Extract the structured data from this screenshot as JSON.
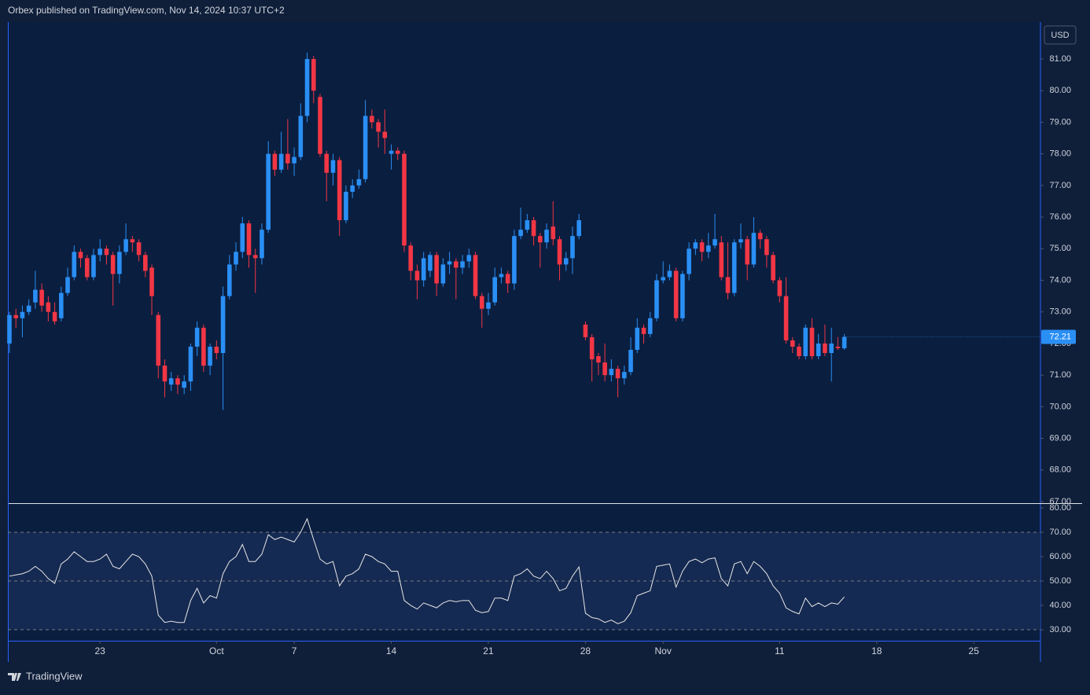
{
  "header": "Orbex published on TradingView.com, Nov 14, 2024 10:37 UTC+2",
  "currency": "USD",
  "brand": "TradingView",
  "chart_data": [
    {
      "type": "candlestick",
      "up_color": "#2a8ff5",
      "down_color": "#f23645",
      "xlim": [
        -0.24,
        159.3
      ],
      "ylim": [
        66.95,
        82.17
      ],
      "yticks": [
        {
          "value": 81,
          "label": "81.00"
        },
        {
          "value": 80,
          "label": "80.00"
        },
        {
          "value": 79,
          "label": "79.00"
        },
        {
          "value": 78,
          "label": "78.00"
        },
        {
          "value": 77,
          "label": "77.00"
        },
        {
          "value": 76,
          "label": "76.00"
        },
        {
          "value": 75,
          "label": "75.00"
        },
        {
          "value": 74,
          "label": "74.00"
        },
        {
          "value": 73,
          "label": "73.00"
        },
        {
          "value": 72,
          "label": "72.00"
        },
        {
          "value": 71,
          "label": "71.00"
        },
        {
          "value": 70,
          "label": "70.00"
        },
        {
          "value": 69,
          "label": "69.00"
        },
        {
          "value": 68,
          "label": "68.00"
        },
        {
          "value": 67,
          "label": "67.00"
        }
      ],
      "open": [
        72.0,
        72.9,
        72.8,
        73.0,
        73.3,
        73.7,
        73.3,
        73.0,
        72.8,
        73.6,
        74.1,
        74.9,
        74.7,
        74.1,
        74.8,
        75.0,
        74.8,
        74.2,
        74.9,
        75.3,
        75.2,
        74.8,
        74.4,
        72.9,
        71.3,
        70.7,
        70.9,
        70.6,
        70.8,
        71.9,
        72.5,
        71.3,
        71.9,
        71.7,
        73.5,
        74.5,
        74.9,
        75.8,
        74.8,
        74.7,
        75.6,
        78.0,
        77.5,
        78.0,
        77.7,
        77.9,
        79.2,
        81.0,
        79.8,
        78.0,
        77.4,
        77.8,
        75.9,
        76.8,
        77.0,
        77.2,
        79.2,
        79.0,
        78.7,
        78.0,
        78.1,
        78.0,
        75.1,
        74.3,
        74.0,
        74.3,
        74.8,
        73.9,
        74.5,
        74.6,
        74.4,
        74.6,
        74.8,
        73.5,
        73.1,
        73.3,
        74.1,
        74.2,
        73.9,
        75.4,
        75.6,
        75.9,
        75.4,
        75.2,
        75.7,
        75.3,
        74.5,
        74.7,
        75.4,
        72.6,
        72.2,
        71.6,
        71.4,
        71.0,
        71.2,
        70.9,
        71.1,
        71.8,
        72.5,
        72.3,
        72.8,
        74.0,
        74.1,
        74.3,
        72.8,
        74.2,
        75.0,
        75.2,
        74.9,
        75.1,
        75.2,
        74.1,
        73.6,
        75.2,
        75.3,
        74.5,
        75.5,
        75.3,
        74.8,
        74.0,
        73.5,
        72.1,
        71.9,
        71.6,
        72.5,
        71.6,
        72.0,
        71.7,
        71.9,
        71.85
      ],
      "high": [
        73.0,
        73.1,
        73.2,
        73.4,
        74.3,
        73.9,
        73.5,
        73.3,
        73.8,
        74.4,
        75.1,
        75.0,
        74.8,
        75.0,
        75.3,
        75.1,
        74.9,
        75.1,
        75.8,
        75.4,
        75.3,
        74.9,
        74.5,
        73.0,
        71.5,
        71.1,
        71.0,
        71.0,
        72.0,
        72.7,
        72.6,
        72.0,
        72.1,
        73.8,
        74.8,
        75.2,
        76.0,
        75.9,
        75.0,
        75.8,
        78.4,
        78.1,
        78.7,
        79.1,
        78.2,
        79.6,
        81.2,
        81.1,
        79.9,
        78.1,
        78.0,
        77.9,
        77.0,
        77.2,
        77.5,
        79.7,
        79.4,
        79.1,
        79.4,
        78.3,
        78.2,
        78.1,
        75.2,
        74.5,
        74.9,
        74.9,
        74.9,
        74.7,
        74.9,
        74.7,
        74.8,
        75.0,
        74.9,
        73.6,
        73.6,
        74.4,
        74.4,
        74.3,
        75.6,
        76.3,
        76.1,
        76.0,
        75.5,
        75.8,
        76.5,
        75.4,
        74.9,
        75.7,
        76.1,
        72.7,
        72.3,
        71.7,
        72.0,
        71.5,
        71.3,
        71.3,
        72.2,
        72.8,
        72.6,
        73.0,
        74.2,
        74.6,
        74.5,
        74.4,
        74.3,
        75.2,
        75.3,
        75.3,
        75.5,
        76.1,
        75.4,
        75.2,
        75.3,
        75.8,
        75.4,
        76.0,
        75.6,
        75.4,
        74.9,
        74.1,
        74.1,
        72.2,
        72.0,
        72.6,
        72.8,
        72.3,
        72.6,
        72.5,
        72.2,
        72.3
      ],
      "low": [
        71.7,
        72.5,
        72.2,
        72.9,
        73.1,
        73.0,
        72.7,
        72.6,
        72.7,
        73.5,
        74.0,
        74.4,
        74.0,
        74.0,
        74.6,
        74.5,
        73.2,
        73.9,
        74.8,
        74.9,
        74.6,
        74.1,
        72.9,
        70.9,
        70.3,
        70.5,
        70.4,
        70.4,
        70.5,
        71.6,
        71.1,
        71.0,
        71.5,
        69.9,
        73.4,
        74.3,
        74.7,
        74.4,
        73.6,
        74.5,
        75.5,
        77.3,
        77.4,
        77.5,
        77.3,
        77.8,
        79.0,
        79.6,
        77.9,
        76.5,
        77.0,
        75.4,
        75.8,
        76.6,
        76.9,
        77.1,
        78.8,
        78.2,
        78.0,
        77.5,
        77.8,
        74.9,
        74.0,
        73.4,
        73.8,
        74.1,
        73.5,
        73.8,
        74.2,
        73.4,
        74.2,
        74.4,
        73.4,
        72.5,
        72.9,
        73.2,
        73.9,
        73.6,
        73.7,
        75.3,
        75.5,
        75.1,
        74.4,
        75.0,
        75.1,
        74.0,
        74.3,
        74.2,
        75.3,
        72.1,
        70.8,
        71.0,
        70.8,
        70.8,
        70.3,
        70.7,
        71.0,
        71.7,
        72.0,
        72.2,
        72.7,
        73.9,
        74.0,
        72.7,
        72.7,
        74.0,
        74.8,
        74.6,
        74.7,
        75.0,
        74.0,
        73.4,
        73.5,
        75.0,
        74.0,
        74.4,
        75.0,
        74.4,
        73.9,
        73.3,
        72.0,
        71.7,
        71.5,
        71.5,
        71.5,
        71.5,
        71.6,
        70.8,
        71.8,
        71.8
      ],
      "close": [
        72.9,
        72.8,
        73.0,
        73.2,
        73.7,
        73.2,
        73.0,
        72.7,
        73.6,
        74.1,
        74.9,
        74.7,
        74.1,
        74.8,
        75.0,
        74.8,
        74.2,
        74.9,
        75.3,
        75.2,
        74.8,
        74.3,
        73.5,
        71.3,
        70.8,
        70.9,
        70.7,
        70.8,
        71.9,
        72.5,
        71.3,
        71.9,
        71.7,
        73.5,
        74.5,
        74.9,
        75.8,
        74.8,
        74.7,
        75.6,
        78.0,
        77.5,
        78.0,
        77.7,
        77.9,
        79.2,
        81.0,
        80.0,
        78.0,
        77.4,
        77.8,
        75.9,
        76.8,
        77.0,
        77.2,
        79.2,
        79.0,
        78.7,
        78.5,
        78.1,
        78.0,
        75.1,
        74.3,
        74.0,
        74.7,
        74.8,
        73.9,
        74.5,
        74.6,
        74.4,
        74.6,
        74.8,
        73.5,
        73.1,
        73.3,
        74.1,
        74.2,
        73.9,
        75.4,
        75.6,
        75.9,
        75.4,
        75.2,
        75.6,
        75.3,
        74.5,
        74.7,
        75.4,
        75.9,
        72.2,
        71.5,
        71.4,
        71.0,
        71.2,
        70.9,
        71.1,
        71.8,
        72.5,
        72.3,
        72.8,
        74.0,
        74.1,
        74.3,
        72.8,
        74.2,
        75.0,
        75.2,
        74.9,
        75.1,
        75.3,
        74.1,
        73.6,
        75.2,
        75.3,
        74.5,
        75.5,
        75.3,
        74.8,
        74.0,
        73.5,
        72.1,
        71.9,
        71.6,
        72.5,
        71.6,
        72.0,
        71.7,
        72.0,
        71.85,
        72.21
      ]
    },
    {
      "type": "line",
      "color": "#e6e6e6",
      "band_color": "#152a52",
      "xlim": [
        -0.24,
        159.3
      ],
      "ylim": [
        25.5,
        81.6
      ],
      "yticks": [
        {
          "value": 80,
          "label": "80.00"
        },
        {
          "value": 70,
          "label": "70.00"
        },
        {
          "value": 60,
          "label": "60.00"
        },
        {
          "value": 50,
          "label": "50.00"
        },
        {
          "value": 40,
          "label": "40.00"
        },
        {
          "value": 30,
          "label": "30.00"
        }
      ],
      "hlines": [
        70,
        50,
        30
      ],
      "xticks": [
        {
          "value": 14,
          "label": "23"
        },
        {
          "value": 32,
          "label": "Oct"
        },
        {
          "value": 44,
          "label": "7"
        },
        {
          "value": 59,
          "label": "14"
        },
        {
          "value": 74,
          "label": "21"
        },
        {
          "value": 89,
          "label": "28"
        },
        {
          "value": 101,
          "label": "Nov"
        },
        {
          "value": 119,
          "label": "11"
        },
        {
          "value": 134,
          "label": "18"
        },
        {
          "value": 149,
          "label": "25"
        }
      ],
      "values": [
        52,
        52.5,
        53,
        54,
        56,
        54,
        51,
        49,
        57,
        59,
        62,
        60,
        58,
        58,
        59,
        61,
        56,
        55,
        58,
        61,
        60,
        57,
        52,
        36,
        33,
        33.5,
        33,
        33,
        42,
        47,
        41,
        44,
        43,
        53,
        58,
        60,
        65,
        58,
        58,
        61,
        69,
        67,
        68,
        67,
        66,
        70,
        75.5,
        67,
        59,
        57,
        58,
        48,
        52,
        53,
        55,
        61,
        60,
        58,
        57,
        54,
        54,
        42,
        40,
        38.5,
        41,
        40,
        39,
        41,
        42,
        41.5,
        42,
        42,
        38,
        37,
        37.5,
        43,
        43,
        42,
        52,
        53,
        55,
        52,
        51,
        54,
        51,
        46,
        47,
        52,
        55.8,
        36.8,
        35,
        34.5,
        33,
        34,
        32.5,
        33.5,
        37,
        44,
        45,
        46,
        56,
        56.5,
        57,
        47.5,
        54,
        58,
        59,
        57.5,
        59,
        59.5,
        51,
        48,
        57,
        58,
        53,
        58,
        56,
        53,
        48,
        45,
        39,
        37.5,
        36.5,
        43,
        39.5,
        41,
        39.5,
        41,
        40.5,
        43.5
      ]
    }
  ]
}
